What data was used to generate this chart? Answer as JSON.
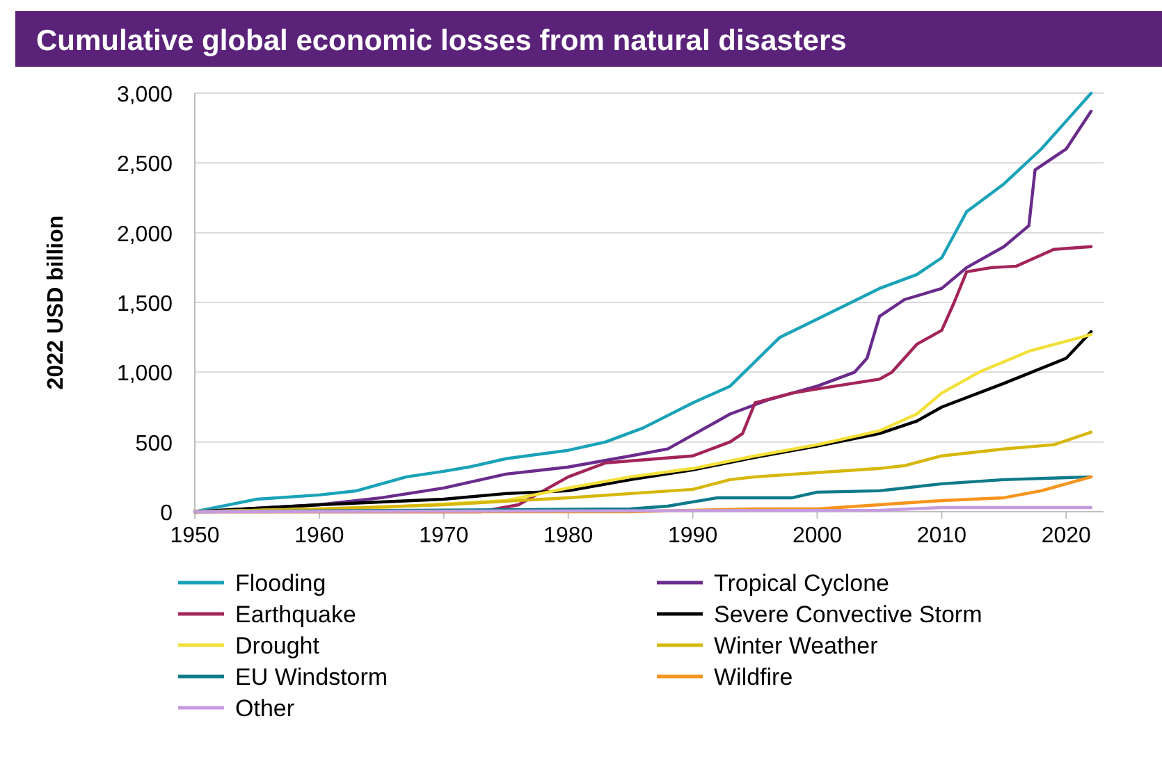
{
  "chart_data": {
    "type": "line",
    "title": "Cumulative global economic losses from natural disasters",
    "ylabel": "2022 USD billion",
    "xlim": [
      1950,
      2023
    ],
    "xticks": [
      1950,
      1960,
      1970,
      1980,
      1990,
      2000,
      2010,
      2020
    ],
    "ylim": [
      0,
      3000
    ],
    "yticks": [
      {
        "value": 0,
        "label": "0"
      },
      {
        "value": 500,
        "label": "500"
      },
      {
        "value": 1000,
        "label": "1,000"
      },
      {
        "value": 1500,
        "label": "1,500"
      },
      {
        "value": 2000,
        "label": "2,000"
      },
      {
        "value": 2500,
        "label": "2,500"
      },
      {
        "value": 3000,
        "label": "3,000"
      }
    ],
    "grid": "y",
    "legend": "bottom",
    "marker": "none",
    "line_style": "solid",
    "series": [
      {
        "name": "Flooding",
        "color": "#1aa3b8",
        "x": [
          1950,
          1955,
          1960,
          1963,
          1967,
          1970,
          1972,
          1975,
          1980,
          1983,
          1986,
          1990,
          1993,
          1997,
          2000,
          2005,
          2008,
          2010,
          2012,
          2015,
          2018,
          2020,
          2022
        ],
        "values": [
          0,
          90,
          120,
          150,
          250,
          290,
          320,
          380,
          440,
          500,
          600,
          780,
          900,
          1250,
          1380,
          1600,
          1700,
          1820,
          2150,
          2350,
          2600,
          2800,
          3000
        ]
      },
      {
        "name": "Tropical Cyclone",
        "color": "#6a2c8c",
        "x": [
          1950,
          1960,
          1965,
          1970,
          1975,
          1980,
          1985,
          1988,
          1990,
          1993,
          1996,
          2000,
          2003,
          2004,
          2005,
          2007,
          2010,
          2012,
          2015,
          2017,
          2017.5,
          2020,
          2022
        ],
        "values": [
          0,
          50,
          100,
          170,
          270,
          320,
          400,
          450,
          550,
          700,
          800,
          900,
          1000,
          1100,
          1400,
          1520,
          1600,
          1750,
          1900,
          2050,
          2450,
          2600,
          2870
        ]
      },
      {
        "name": "Earthquake",
        "color": "#a3245a",
        "x": [
          1950,
          1973,
          1976,
          1980,
          1983,
          1990,
          1993,
          1994,
          1995,
          1998,
          2000,
          2005,
          2006,
          2008,
          2010,
          2011,
          2012,
          2014,
          2016,
          2019,
          2022
        ],
        "values": [
          0,
          0,
          50,
          250,
          350,
          400,
          500,
          560,
          780,
          850,
          880,
          950,
          1000,
          1200,
          1300,
          1500,
          1720,
          1750,
          1760,
          1880,
          1900
        ]
      },
      {
        "name": "Severe Convective Storm",
        "color": "#000000",
        "x": [
          1950,
          1960,
          1970,
          1975,
          1980,
          1985,
          1990,
          1995,
          2000,
          2005,
          2008,
          2010,
          2015,
          2020,
          2022
        ],
        "values": [
          0,
          50,
          90,
          130,
          150,
          230,
          300,
          390,
          470,
          560,
          650,
          750,
          920,
          1100,
          1290
        ]
      },
      {
        "name": "Drought",
        "color": "#f3e03a",
        "x": [
          1950,
          1965,
          1975,
          1980,
          1985,
          1990,
          1995,
          2000,
          2005,
          2008,
          2010,
          2013,
          2017,
          2022
        ],
        "values": [
          0,
          30,
          80,
          170,
          250,
          310,
          400,
          480,
          580,
          700,
          850,
          1000,
          1150,
          1270
        ]
      },
      {
        "name": "Winter Weather",
        "color": "#d6b70c",
        "x": [
          1950,
          1960,
          1970,
          1980,
          1985,
          1990,
          1993,
          1995,
          2000,
          2005,
          2007,
          2010,
          2015,
          2019,
          2022
        ],
        "values": [
          0,
          20,
          50,
          100,
          130,
          160,
          230,
          250,
          280,
          310,
          330,
          400,
          450,
          480,
          570
        ]
      },
      {
        "name": "EU Windstorm",
        "color": "#0e7a8a",
        "x": [
          1950,
          1985,
          1988,
          1990,
          1992,
          1998,
          2000,
          2005,
          2010,
          2015,
          2022
        ],
        "values": [
          0,
          20,
          40,
          70,
          100,
          100,
          140,
          150,
          200,
          230,
          250
        ]
      },
      {
        "name": "Wildfire",
        "color": "#f7941d",
        "x": [
          1950,
          1985,
          1995,
          2000,
          2005,
          2010,
          2015,
          2018,
          2022
        ],
        "values": [
          0,
          0,
          20,
          20,
          50,
          80,
          100,
          150,
          250
        ]
      },
      {
        "name": "Other",
        "color": "#c59ce0",
        "x": [
          1950,
          2005,
          2010,
          2022
        ],
        "values": [
          0,
          10,
          30,
          30
        ]
      }
    ]
  }
}
